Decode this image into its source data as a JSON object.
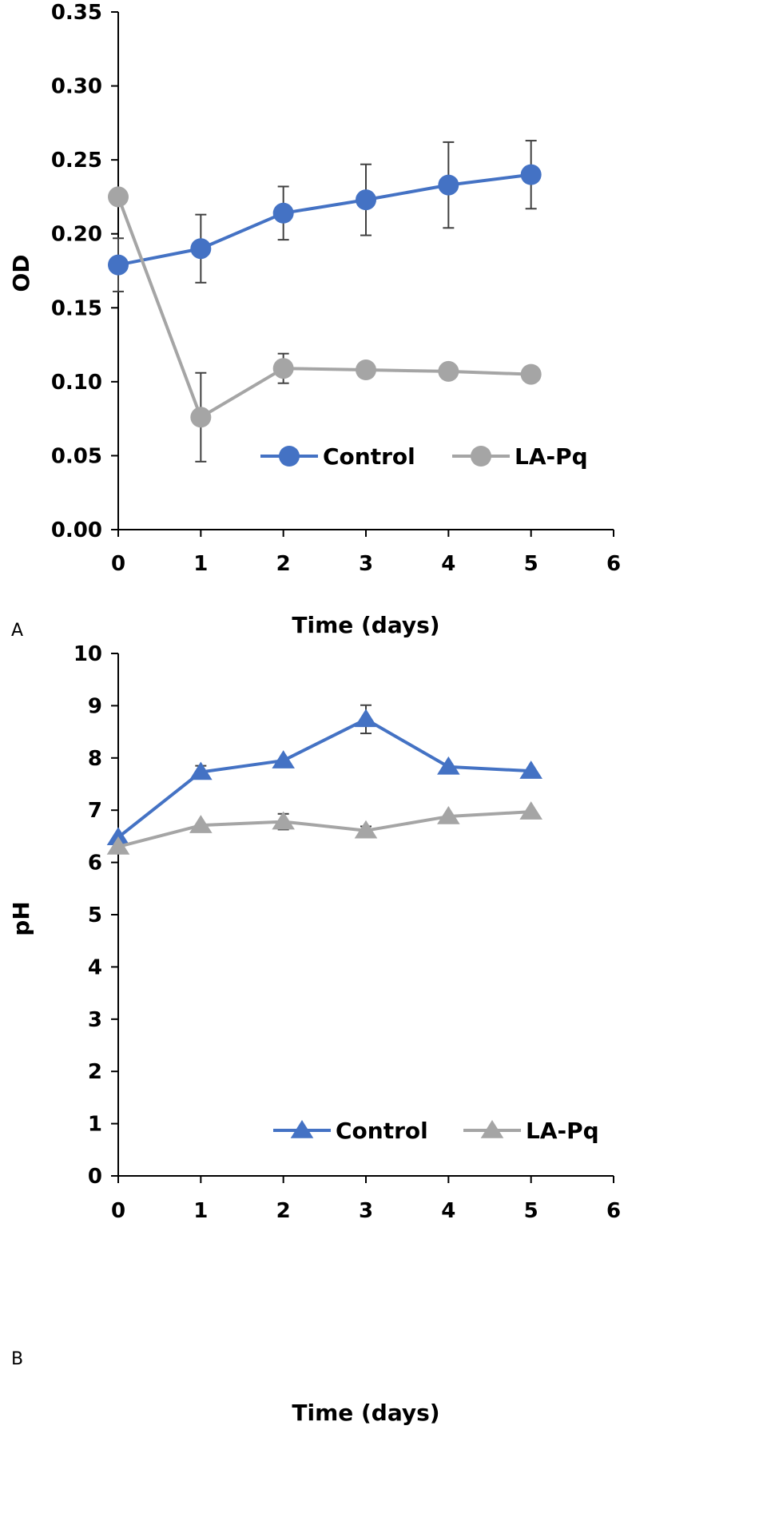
{
  "colors": {
    "control": "#4472C4",
    "lapq": "#A5A5A5",
    "axis": "#000000",
    "errorbar": "#404040"
  },
  "chart_data": [
    {
      "type": "line",
      "panel_label": "A",
      "xlabel": "Time (days)",
      "ylabel": "OD",
      "xlim": [
        0,
        6
      ],
      "ylim": [
        0,
        0.35
      ],
      "xticks": [
        0,
        1,
        2,
        3,
        4,
        5,
        6
      ],
      "yticks": [
        0,
        0.05,
        0.1,
        0.15,
        0.2,
        0.25,
        0.3,
        0.35
      ],
      "ytick_labels": [
        "0.00",
        "0.05",
        "0.10",
        "0.15",
        "0.20",
        "0.25",
        "0.30",
        "0.35"
      ],
      "marker": "circle",
      "legend_position": "lower-right",
      "series": [
        {
          "name": "Control",
          "color": "#4472C4",
          "x": [
            0,
            1,
            2,
            3,
            4,
            5
          ],
          "values": [
            0.179,
            0.19,
            0.214,
            0.223,
            0.233,
            0.24
          ],
          "errors": [
            0.018,
            0.023,
            0.018,
            0.024,
            0.029,
            0.023
          ]
        },
        {
          "name": "LA-Pq",
          "color": "#A5A5A5",
          "x": [
            0,
            1,
            2,
            3,
            4,
            5
          ],
          "values": [
            0.225,
            0.076,
            0.109,
            0.108,
            0.107,
            0.105
          ],
          "errors": [
            0.0,
            0.03,
            0.01,
            0.0,
            0.0,
            0.0
          ]
        }
      ]
    },
    {
      "type": "line",
      "panel_label": "B",
      "xlabel": "Time (days)",
      "ylabel": "pH",
      "xlim": [
        0,
        6
      ],
      "ylim": [
        0,
        10
      ],
      "xticks": [
        0,
        1,
        2,
        3,
        4,
        5,
        6
      ],
      "yticks": [
        0,
        1,
        2,
        3,
        4,
        5,
        6,
        7,
        8,
        9,
        10
      ],
      "ytick_labels": [
        "0",
        "1",
        "2",
        "3",
        "4",
        "5",
        "6",
        "7",
        "8",
        "9",
        "10"
      ],
      "marker": "triangle",
      "legend_position": "lower-right",
      "series": [
        {
          "name": "Control",
          "color": "#4472C4",
          "x": [
            0,
            1,
            2,
            3,
            4,
            5
          ],
          "values": [
            6.48,
            7.73,
            7.95,
            8.74,
            7.83,
            7.75
          ],
          "errors": [
            0.0,
            0.12,
            0.0,
            0.27,
            0.0,
            0.0
          ]
        },
        {
          "name": "LA-Pq",
          "color": "#A5A5A5",
          "x": [
            0,
            1,
            2,
            3,
            4,
            5
          ],
          "values": [
            6.3,
            6.71,
            6.78,
            6.61,
            6.88,
            6.97
          ],
          "errors": [
            0.0,
            0.0,
            0.15,
            0.08,
            0.0,
            0.0
          ]
        }
      ]
    }
  ]
}
